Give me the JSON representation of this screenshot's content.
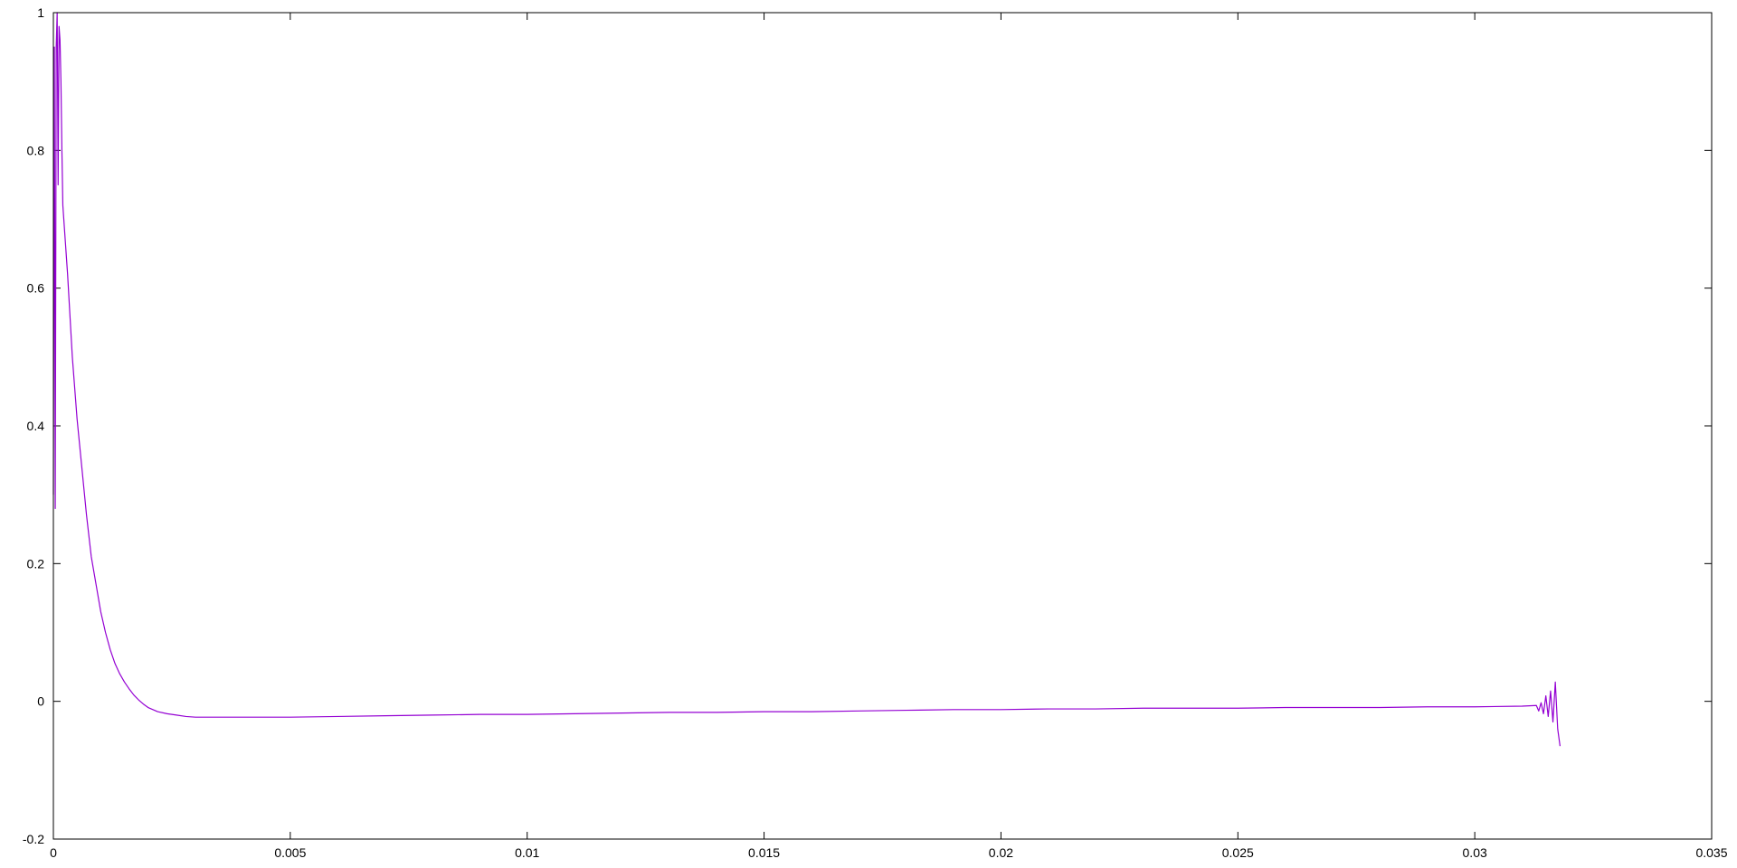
{
  "chart_data": {
    "type": "line",
    "title": "",
    "xlabel": "",
    "ylabel": "",
    "xlim": [
      0,
      0.035
    ],
    "ylim": [
      -0.2,
      1
    ],
    "grid": false,
    "legend": "none",
    "x_ticks": [
      {
        "value": 0,
        "label": "0"
      },
      {
        "value": 0.005,
        "label": "0.005"
      },
      {
        "value": 0.01,
        "label": "0.01"
      },
      {
        "value": 0.015,
        "label": "0.015"
      },
      {
        "value": 0.02,
        "label": "0.02"
      },
      {
        "value": 0.025,
        "label": "0.025"
      },
      {
        "value": 0.03,
        "label": "0.03"
      },
      {
        "value": 0.035,
        "label": "0.035"
      }
    ],
    "y_ticks": [
      {
        "value": -0.2,
        "label": "-0.2"
      },
      {
        "value": 0,
        "label": "0"
      },
      {
        "value": 0.2,
        "label": "0.2"
      },
      {
        "value": 0.4,
        "label": "0.4"
      },
      {
        "value": 0.6,
        "label": "0.6"
      },
      {
        "value": 0.8,
        "label": "0.8"
      },
      {
        "value": 1,
        "label": "1"
      }
    ],
    "series": [
      {
        "color": "#9400d3",
        "x": [
          0,
          2e-05,
          4e-05,
          6e-05,
          8e-05,
          0.0001,
          0.00012,
          0.00014,
          0.00016,
          0.00018,
          0.0002,
          0.0003,
          0.0004,
          0.0005,
          0.0006,
          0.0007,
          0.0008,
          0.0009,
          0.001,
          0.0011,
          0.0012,
          0.0013,
          0.0014,
          0.0015,
          0.0016,
          0.0017,
          0.0018,
          0.0019,
          0.002,
          0.0022,
          0.0024,
          0.0026,
          0.0028,
          0.003,
          0.0035,
          0.004,
          0.005,
          0.006,
          0.007,
          0.008,
          0.009,
          0.01,
          0.011,
          0.012,
          0.013,
          0.014,
          0.015,
          0.016,
          0.017,
          0.018,
          0.019,
          0.02,
          0.021,
          0.022,
          0.023,
          0.024,
          0.025,
          0.026,
          0.027,
          0.028,
          0.029,
          0.03,
          0.031,
          0.0313,
          0.03135,
          0.0314,
          0.03145,
          0.0315,
          0.03155,
          0.0316,
          0.03165,
          0.0317,
          0.03175,
          0.0318
        ],
        "y": [
          0.3,
          0.95,
          0.28,
          0.95,
          1.0,
          0.75,
          0.98,
          0.96,
          0.9,
          0.8,
          0.72,
          0.62,
          0.5,
          0.41,
          0.34,
          0.27,
          0.21,
          0.17,
          0.13,
          0.1,
          0.075,
          0.055,
          0.04,
          0.028,
          0.018,
          0.009,
          0.002,
          -0.004,
          -0.009,
          -0.015,
          -0.018,
          -0.02,
          -0.022,
          -0.023,
          -0.023,
          -0.023,
          -0.023,
          -0.022,
          -0.021,
          -0.02,
          -0.019,
          -0.019,
          -0.018,
          -0.017,
          -0.016,
          -0.016,
          -0.015,
          -0.015,
          -0.014,
          -0.013,
          -0.012,
          -0.012,
          -0.011,
          -0.011,
          -0.01,
          -0.01,
          -0.01,
          -0.009,
          -0.009,
          -0.009,
          -0.008,
          -0.008,
          -0.007,
          -0.006,
          -0.014,
          -0.002,
          -0.018,
          0.008,
          -0.022,
          0.015,
          -0.03,
          0.028,
          -0.04,
          -0.065
        ]
      }
    ]
  }
}
